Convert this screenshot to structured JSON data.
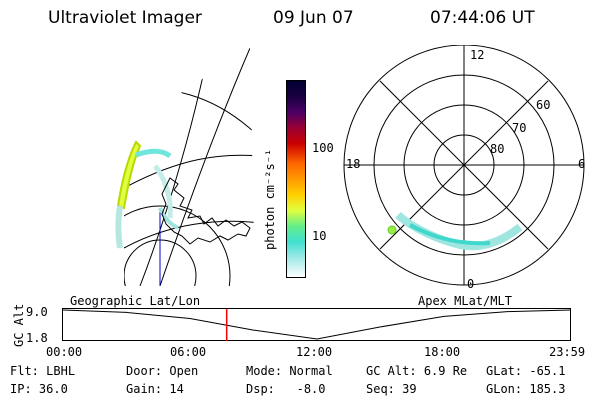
{
  "header": {
    "instrument": "Ultraviolet Imager",
    "date": "09 Jun 07",
    "time": "07:44:06 UT"
  },
  "colorbar": {
    "unit_label": "photon cm⁻²s⁻¹",
    "ticks": [
      "100",
      "10"
    ]
  },
  "polar_plot": {
    "mlt_labels": [
      "12",
      "18",
      "6",
      "0"
    ],
    "lat_labels": [
      "60",
      "70",
      "80"
    ]
  },
  "timeline": {
    "left_label": "Geographic Lat/Lon",
    "right_label": "Apex MLat/MLT",
    "y_label": "GC Alt",
    "y_ticks": [
      "9.0",
      "1.8"
    ],
    "x_ticks": [
      "00:00",
      "06:00",
      "12:00",
      "18:00",
      "23:59"
    ],
    "marker_time": "07:44",
    "marker_color": "#ff0000",
    "curve_series": [
      {
        "t": 0,
        "alt": 9.0
      },
      {
        "t": 3,
        "alt": 8.4
      },
      {
        "t": 6,
        "alt": 6.9
      },
      {
        "t": 9,
        "alt": 4.0
      },
      {
        "t": 12,
        "alt": 1.8
      },
      {
        "t": 15,
        "alt": 4.8
      },
      {
        "t": 18,
        "alt": 7.4
      },
      {
        "t": 21,
        "alt": 8.6
      },
      {
        "t": 24,
        "alt": 9.0
      }
    ]
  },
  "status": {
    "flt_label": "Flt:",
    "flt_value": "LBHL",
    "ip_label": "IP:",
    "ip_value": "36.0",
    "door_label": "Door:",
    "door_value": "Open",
    "gain_label": "Gain:",
    "gain_value": "14",
    "mode_label": "Mode:",
    "mode_value": "Normal",
    "dsp_label": "Dsp:",
    "dsp_value": "-8.0",
    "gcalt_label": "GC Alt:",
    "gcalt_value": "6.9 Re",
    "seq_label": "Seq:",
    "seq_value": "39",
    "glat_label": "GLat:",
    "glat_value": "-65.1",
    "glon_label": "GLon:",
    "glon_value": "185.3"
  }
}
